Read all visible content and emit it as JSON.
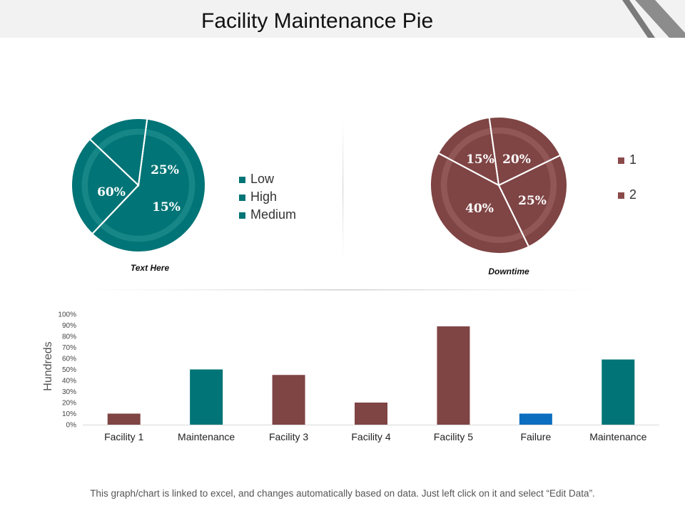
{
  "header": {
    "title": "Facility Maintenance Pie"
  },
  "colors": {
    "teal": "#007476",
    "maroon": "#7f4444",
    "blue": "#0b6ebf",
    "legend_teal": "#007476",
    "legend_maroon": "#8b4a4a"
  },
  "chart_data": [
    {
      "type": "pie",
      "caption": "Text Here",
      "slices": [
        {
          "label": "60%",
          "value": 60
        },
        {
          "label": "25%",
          "value": 25
        },
        {
          "label": "15%",
          "value": 15
        }
      ],
      "legend": [
        "Low",
        "High",
        "Medium"
      ]
    },
    {
      "type": "pie",
      "caption": "Downtime",
      "slices": [
        {
          "label": "15%",
          "value": 15
        },
        {
          "label": "20%",
          "value": 20
        },
        {
          "label": "25%",
          "value": 25
        },
        {
          "label": "40%",
          "value": 40
        }
      ],
      "legend": [
        "1",
        "2"
      ]
    },
    {
      "type": "bar",
      "categories": [
        "Facility 1",
        "Maintenance",
        "Facility 3",
        "Facility 4",
        "Facility 5",
        "Failure",
        "Maintenance"
      ],
      "values": [
        10,
        50,
        45,
        20,
        89,
        10,
        59
      ],
      "bar_colors": [
        "#7f4444",
        "#007476",
        "#7f4444",
        "#7f4444",
        "#7f4444",
        "#0b6ebf",
        "#007476"
      ],
      "yticks": [
        "0%",
        "10%",
        "20%",
        "30%",
        "40%",
        "50%",
        "60%",
        "70%",
        "80%",
        "90%",
        "100%"
      ],
      "ylim": [
        0,
        100
      ],
      "ylabel": "Hundreds"
    }
  ],
  "footer": {
    "note": "This graph/chart is linked to excel, and changes automatically based on data. Just left click on it and select “Edit Data”."
  }
}
